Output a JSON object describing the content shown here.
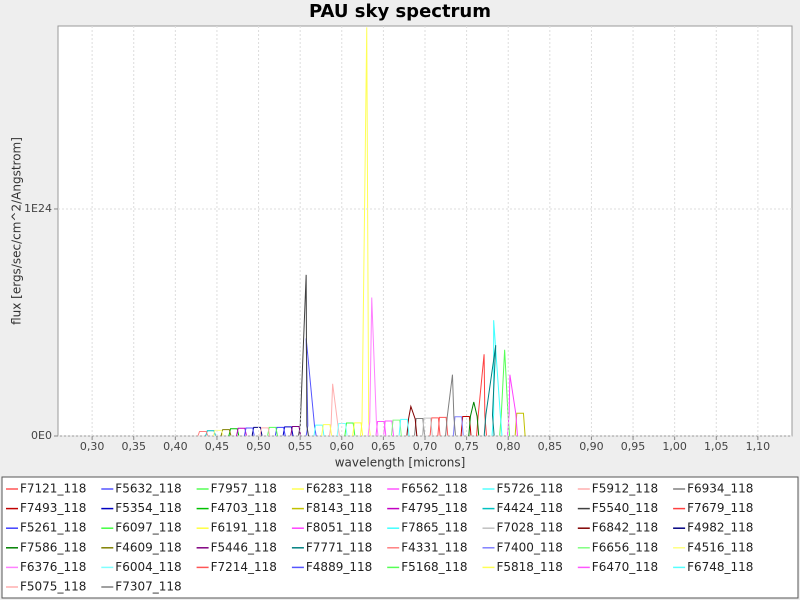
{
  "chart_data": {
    "type": "line",
    "title": "PAU sky spectrum",
    "x_label": "wavelength [microns]",
    "y_label": "flux [ergs/sec/cm^2/Angstrom]",
    "xlim": [
      0.259,
      1.141
    ],
    "ylim": [
      0,
      1.806e+24
    ],
    "xticks": [
      {
        "value": 0.3,
        "label": "0,30"
      },
      {
        "value": 0.35,
        "label": "0,35"
      },
      {
        "value": 0.4,
        "label": "0,40"
      },
      {
        "value": 0.45,
        "label": "0,45"
      },
      {
        "value": 0.5,
        "label": "0,50"
      },
      {
        "value": 0.55,
        "label": "0,55"
      },
      {
        "value": 0.6,
        "label": "0,60"
      },
      {
        "value": 0.65,
        "label": "0,65"
      },
      {
        "value": 0.7,
        "label": "0,70"
      },
      {
        "value": 0.75,
        "label": "0,75"
      },
      {
        "value": 0.8,
        "label": "0,80"
      },
      {
        "value": 0.85,
        "label": "0,85"
      },
      {
        "value": 0.9,
        "label": "0,90"
      },
      {
        "value": 0.95,
        "label": "0,95"
      },
      {
        "value": 1.0,
        "label": "1,00"
      },
      {
        "value": 1.05,
        "label": "1,05"
      },
      {
        "value": 1.1,
        "label": "1,10"
      }
    ],
    "yticks": [
      {
        "value": 0,
        "label": "0E0"
      },
      {
        "value": 1e+24,
        "label": "1E24"
      }
    ],
    "grid": true,
    "series": [
      {
        "name": "F7121_118",
        "color": "#ff5555",
        "x": [
          0.7061,
          0.7081,
          0.7121,
          0.7161,
          0.7181
        ],
        "values": [
          0,
          8e+22,
          8e+22,
          8e+22,
          0
        ]
      },
      {
        "name": "F5632_118",
        "color": "#5555ff",
        "x": [
          0.5572,
          0.5592,
          0.5572,
          0.5672,
          0.5692
        ],
        "values": [
          0,
          4.6e+22,
          4.3e+23,
          4.6e+22,
          0
        ]
      },
      {
        "name": "F7957_118",
        "color": "#55ff55",
        "x": [
          0.7897,
          0.7917,
          0.7957,
          0.7997,
          0.8017
        ],
        "values": [
          0,
          9.6e+22,
          3.8e+23,
          9.6e+22,
          0
        ]
      },
      {
        "name": "F6283_118",
        "color": "#ffff55",
        "x": [
          0.6223,
          0.6243,
          0.63,
          0.6323,
          0.6343
        ],
        "values": [
          0,
          6e+22,
          1.8e+24,
          6e+22,
          0
        ]
      },
      {
        "name": "F6562_118",
        "color": "#ff55ff",
        "x": [
          0.6502,
          0.6522,
          0.6562,
          0.6602,
          0.6622
        ],
        "values": [
          0,
          6.6e+22,
          6.6e+22,
          6.6e+22,
          0
        ]
      },
      {
        "name": "F5726_118",
        "color": "#55ffff",
        "x": [
          0.5666,
          0.5686,
          0.5726,
          0.5766,
          0.5786
        ],
        "values": [
          0,
          4.8e+22,
          4.8e+22,
          4.8e+22,
          0
        ]
      },
      {
        "name": "F5912_118",
        "color": "#ffafaf",
        "x": [
          0.5852,
          0.5872,
          0.589,
          0.5952,
          0.5972
        ],
        "values": [
          0,
          5.2e+22,
          2.3e+23,
          5.2e+22,
          0
        ]
      },
      {
        "name": "F6934_118",
        "color": "#808080",
        "x": [
          0.6874,
          0.6894,
          0.6934,
          0.6974,
          0.6994
        ],
        "values": [
          0,
          7.7e+22,
          7.7e+22,
          7.7e+22,
          0
        ]
      },
      {
        "name": "F7493_118",
        "color": "#c00000",
        "x": [
          0.7433,
          0.7453,
          0.7493,
          0.7533,
          0.7553
        ],
        "values": [
          0,
          8.6e+22,
          8.6e+22,
          8.6e+22,
          0
        ]
      },
      {
        "name": "F5354_118",
        "color": "#0000c0",
        "x": [
          0.5294,
          0.5314,
          0.5354,
          0.5394,
          0.5414
        ],
        "values": [
          0,
          4e+22,
          4e+22,
          4e+22,
          0
        ]
      },
      {
        "name": "F4703_118",
        "color": "#00c000",
        "x": [
          0.4643,
          0.4663,
          0.4703,
          0.4743,
          0.4763
        ],
        "values": [
          0,
          3.2e+22,
          3.2e+22,
          3.2e+22,
          0
        ]
      },
      {
        "name": "F8143_118",
        "color": "#c0c000",
        "x": [
          0.8083,
          0.8103,
          0.8143,
          0.8183,
          0.8203
        ],
        "values": [
          0,
          1e+23,
          1e+23,
          1e+23,
          0
        ]
      },
      {
        "name": "F4795_118",
        "color": "#c000c0",
        "x": [
          0.4735,
          0.4755,
          0.4795,
          0.4835,
          0.4855
        ],
        "values": [
          0,
          3.4e+22,
          3.4e+22,
          3.4e+22,
          0
        ]
      },
      {
        "name": "F4424_118",
        "color": "#00c0c0",
        "x": [
          0.4364,
          0.4384,
          0.4424,
          0.4464,
          0.4484
        ],
        "values": [
          0,
          2.3e+22,
          2.3e+22,
          2.3e+22,
          0
        ]
      },
      {
        "name": "F5540_118",
        "color": "#404040",
        "x": [
          0.548,
          0.55,
          0.5572,
          0.558,
          0.56
        ],
        "values": [
          0,
          4.4e+22,
          7.1e+23,
          4.4e+22,
          0
        ]
      },
      {
        "name": "F7679_118",
        "color": "#ff4040",
        "x": [
          0.7619,
          0.7639,
          0.771,
          0.7719,
          0.7739
        ],
        "values": [
          0,
          9e+22,
          3.6e+23,
          9e+22,
          0
        ]
      },
      {
        "name": "F5261_118",
        "color": "#4040ff",
        "x": [
          0.5201,
          0.5221,
          0.5261,
          0.5301,
          0.5321
        ],
        "values": [
          0,
          3.8e+22,
          3.8e+22,
          3.8e+22,
          0
        ]
      },
      {
        "name": "F6097_118",
        "color": "#40ff40",
        "x": [
          0.6037,
          0.6057,
          0.6097,
          0.6137,
          0.6157
        ],
        "values": [
          0,
          5.7e+22,
          5.7e+22,
          5.7e+22,
          0
        ]
      },
      {
        "name": "F6191_118",
        "color": "#ffff40",
        "x": [
          0.6131,
          0.6151,
          0.6191,
          0.6231,
          0.6251
        ],
        "values": [
          0,
          5.8e+22,
          5.8e+22,
          5.8e+22,
          0
        ]
      },
      {
        "name": "F8051_118",
        "color": "#ff40ff",
        "x": [
          0.7991,
          0.8011,
          0.802,
          0.8091,
          0.8111
        ],
        "values": [
          0,
          9.9e+22,
          2.7e+23,
          9.9e+22,
          0
        ]
      },
      {
        "name": "F7865_118",
        "color": "#40ffff",
        "x": [
          0.7805,
          0.7825,
          0.7825,
          0.7905,
          0.7925
        ],
        "values": [
          0,
          9.4e+22,
          5.1e+23,
          9.4e+22,
          0
        ]
      },
      {
        "name": "F7028_118",
        "color": "#c0c0c0",
        "x": [
          0.6968,
          0.6988,
          0.7028,
          0.7068,
          0.7088
        ],
        "values": [
          0,
          7.9e+22,
          7.9e+22,
          7.9e+22,
          0
        ]
      },
      {
        "name": "F6842_118",
        "color": "#800000",
        "x": [
          0.6782,
          0.6802,
          0.683,
          0.6882,
          0.6902
        ],
        "values": [
          0,
          7.5e+22,
          1.3e+23,
          7.5e+22,
          0
        ]
      },
      {
        "name": "F4982_118",
        "color": "#000080",
        "x": [
          0.4922,
          0.4942,
          0.4982,
          0.5022,
          0.5042
        ],
        "values": [
          0,
          3.8e+22,
          3.8e+22,
          3.8e+22,
          0
        ]
      },
      {
        "name": "F7586_118",
        "color": "#008000",
        "x": [
          0.7526,
          0.7546,
          0.7586,
          0.7626,
          0.7646
        ],
        "values": [
          0,
          8.7e+22,
          1.5e+23,
          8.7e+22,
          0
        ]
      },
      {
        "name": "F4609_118",
        "color": "#808000",
        "x": [
          0.4549,
          0.4569,
          0.4609,
          0.4649,
          0.4669
        ],
        "values": [
          0,
          2.8e+22,
          2.8e+22,
          2.8e+22,
          0
        ]
      },
      {
        "name": "F5446_118",
        "color": "#800080",
        "x": [
          0.5386,
          0.5406,
          0.5446,
          0.5486,
          0.5506
        ],
        "values": [
          0,
          4.2e+22,
          4.2e+22,
          4.2e+22,
          0
        ]
      },
      {
        "name": "F7771_118",
        "color": "#008080",
        "x": [
          0.7711,
          0.7731,
          0.785,
          0.7811,
          0.7831
        ],
        "values": [
          0,
          9.2e+22,
          4e+23,
          9.2e+22,
          0
        ]
      },
      {
        "name": "F4331_118",
        "color": "#ff8080",
        "x": [
          0.4271,
          0.4291,
          0.4331,
          0.4371,
          0.4391
        ],
        "values": [
          0,
          2e+22,
          2e+22,
          2e+22,
          0
        ]
      },
      {
        "name": "F7400_118",
        "color": "#8080ff",
        "x": [
          0.734,
          0.736,
          0.74,
          0.744,
          0.746
        ],
        "values": [
          0,
          8.5e+22,
          8.5e+22,
          8.5e+22,
          0
        ]
      },
      {
        "name": "F6656_118",
        "color": "#80ff80",
        "x": [
          0.6596,
          0.6616,
          0.6656,
          0.6696,
          0.6716
        ],
        "values": [
          0,
          7e+22,
          7e+22,
          7e+22,
          0
        ]
      },
      {
        "name": "F4516_118",
        "color": "#ffff80",
        "x": [
          0.4456,
          0.4476,
          0.4516,
          0.4556,
          0.4576
        ],
        "values": [
          0,
          2.5e+22,
          2.5e+22,
          2.5e+22,
          0
        ]
      },
      {
        "name": "F6376_118",
        "color": "#ff80ff",
        "x": [
          0.6316,
          0.6336,
          0.636,
          0.6416,
          0.6436
        ],
        "values": [
          0,
          6.2e+22,
          6.1e+23,
          6.2e+22,
          0
        ]
      },
      {
        "name": "F6004_118",
        "color": "#80ffff",
        "x": [
          0.5944,
          0.5964,
          0.6004,
          0.6044,
          0.6064
        ],
        "values": [
          0,
          5.5e+22,
          5.5e+22,
          5.5e+22,
          0
        ]
      },
      {
        "name": "F7214_118",
        "color": "#ff5555",
        "x": [
          0.7154,
          0.7174,
          0.7214,
          0.7254,
          0.7274
        ],
        "values": [
          0,
          8.2e+22,
          8.2e+22,
          8.2e+22,
          0
        ]
      },
      {
        "name": "F4889_118",
        "color": "#5555ff",
        "x": [
          0.4829,
          0.4849,
          0.4889,
          0.4929,
          0.4949
        ],
        "values": [
          0,
          3.5e+22,
          3.5e+22,
          3.5e+22,
          0
        ]
      },
      {
        "name": "F5168_118",
        "color": "#55ff55",
        "x": [
          0.5108,
          0.5128,
          0.5168,
          0.5208,
          0.5228
        ],
        "values": [
          0,
          3.8e+22,
          3.8e+22,
          3.8e+22,
          0
        ]
      },
      {
        "name": "F5818_118",
        "color": "#ffff55",
        "x": [
          0.5758,
          0.5778,
          0.5818,
          0.5858,
          0.5878
        ],
        "values": [
          0,
          5e+22,
          5e+22,
          5e+22,
          0
        ]
      },
      {
        "name": "F6470_118",
        "color": "#ff55ff",
        "x": [
          0.641,
          0.643,
          0.647,
          0.651,
          0.653
        ],
        "values": [
          0,
          6.4e+22,
          6.4e+22,
          6.4e+22,
          0
        ]
      },
      {
        "name": "F6748_118",
        "color": "#55ffff",
        "x": [
          0.6688,
          0.6708,
          0.6748,
          0.6788,
          0.6808
        ],
        "values": [
          0,
          7.3e+22,
          7.3e+22,
          7.3e+22,
          0
        ]
      },
      {
        "name": "F5075_118",
        "color": "#ffafaf",
        "x": [
          0.5015,
          0.5035,
          0.5075,
          0.5115,
          0.5135
        ],
        "values": [
          0,
          3.6e+22,
          3.6e+22,
          3.6e+22,
          0
        ]
      },
      {
        "name": "F7307_118",
        "color": "#808080",
        "x": [
          0.7247,
          0.7267,
          0.733,
          0.7347,
          0.7367
        ],
        "values": [
          0,
          8.4e+22,
          2.7e+23,
          8.4e+22,
          0
        ]
      }
    ]
  }
}
